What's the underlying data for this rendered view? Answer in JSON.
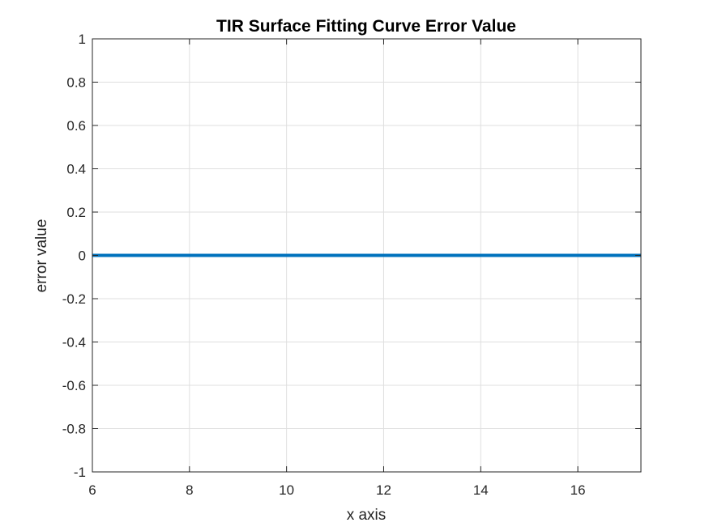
{
  "chart_data": {
    "type": "line",
    "title": "TIR Surface Fitting Curve Error Value",
    "xlabel": "x axis",
    "ylabel": "error value",
    "xlim": [
      6,
      17.3
    ],
    "ylim": [
      -1,
      1
    ],
    "grid": true,
    "x_ticks": [
      6,
      8,
      10,
      12,
      14,
      16
    ],
    "x_tick_labels": [
      "6",
      "8",
      "10",
      "12",
      "14",
      "16"
    ],
    "y_ticks": [
      1,
      0.8,
      0.6,
      0.4,
      0.2,
      0,
      -0.2,
      -0.4,
      -0.6,
      -0.8,
      -1
    ],
    "y_tick_labels": [
      "1",
      "0.8",
      "0.6",
      "0.4",
      "0.2",
      "0",
      "-0.2",
      "-0.4",
      "-0.6",
      "-0.8",
      "-1"
    ],
    "series": [
      {
        "color": "#0072BD",
        "x": [
          6,
          7,
          8,
          9,
          10,
          11,
          12,
          13,
          14,
          15,
          16,
          17.3
        ],
        "y": [
          0,
          0,
          0,
          0,
          0,
          0,
          0,
          0,
          0,
          0,
          0,
          0
        ]
      }
    ]
  }
}
